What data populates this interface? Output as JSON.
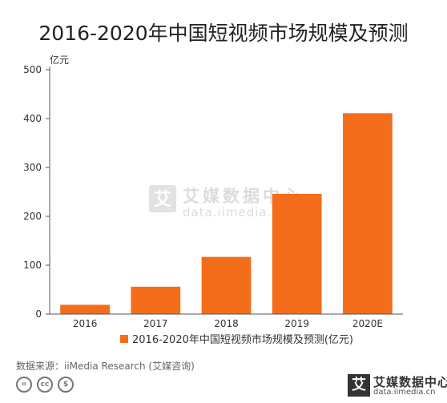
{
  "chart_data": {
    "type": "bar",
    "title": "2016-2020年中国短视频市场规模及预测",
    "unit_label": "亿元",
    "categories": [
      "2016",
      "2017",
      "2018",
      "2019",
      "2020E"
    ],
    "series": [
      {
        "name": "2016-2020年中国短视频市场规模及预测(亿元)",
        "values": [
          19,
          56,
          117,
          246,
          411
        ],
        "color": "#f46d1b"
      }
    ],
    "ylim": [
      0,
      500
    ],
    "yticks": [
      0,
      100,
      200,
      300,
      400,
      500
    ],
    "grid": false,
    "legend_position": "bottom"
  },
  "watermark": {
    "brand": "艾媒数据中心",
    "url": "data.iimedia.cn",
    "logo_char": "艾"
  },
  "footer": {
    "source": "数据来源：iiMedia Research (艾媒咨询)",
    "license_icons": [
      "=",
      "cc",
      "$"
    ],
    "brand_name": "艾媒数据中心",
    "brand_url": "data.iimedia.cn",
    "brand_logo_char": "艾"
  }
}
